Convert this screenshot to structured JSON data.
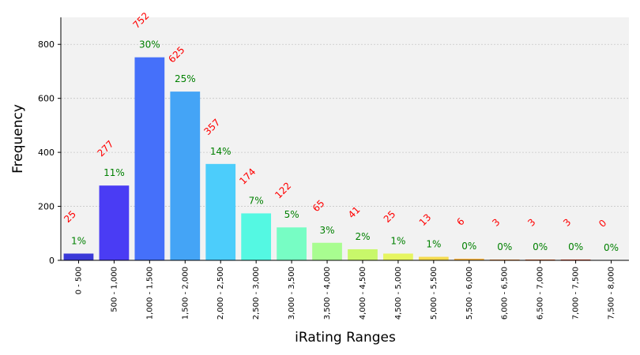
{
  "chart_data": {
    "type": "bar",
    "xlabel": "iRating Ranges",
    "ylabel": "Frequency",
    "ylim": [
      0,
      900
    ],
    "yticks": [
      0,
      200,
      400,
      600,
      800
    ],
    "grid": true,
    "categories": [
      "0 - 500",
      "500 - 1,000",
      "1,000 - 1,500",
      "1,500 - 2,000",
      "2,000 - 2,500",
      "2,500 - 3,000",
      "3,000 - 3,500",
      "3,500 - 4,000",
      "4,000 - 4,500",
      "4,500 - 5,000",
      "5,000 - 5,500",
      "5,500 - 6,000",
      "6,000 - 6,500",
      "6,500 - 7,000",
      "7,000 - 7,500",
      "7,500 - 8,000"
    ],
    "values": [
      25,
      277,
      752,
      625,
      357,
      174,
      122,
      65,
      41,
      25,
      13,
      6,
      3,
      3,
      3,
      0
    ],
    "count_labels": [
      "25",
      "277",
      "752",
      "625",
      "357",
      "174",
      "122",
      "65",
      "41",
      "25",
      "13",
      "6",
      "3",
      "3",
      "3",
      "0"
    ],
    "percent_labels": [
      "1%",
      "11%",
      "30%",
      "25%",
      "14%",
      "7%",
      "5%",
      "3%",
      "2%",
      "1%",
      "1%",
      "0%",
      "0%",
      "0%",
      "0%",
      "0%"
    ],
    "colors": [
      "#3a39d8",
      "#4a3cf4",
      "#4570fa",
      "#44a4f6",
      "#4ccdfb",
      "#54f8e2",
      "#77fdc4",
      "#a8fd90",
      "#c8f86a",
      "#e6f560",
      "#f5dc50",
      "#fbb640",
      "#f98a30",
      "#f06020",
      "#e43c18",
      "#c81810"
    ],
    "background": "#f2f2f2",
    "count_color": "#ff0000",
    "percent_color": "#008000"
  }
}
